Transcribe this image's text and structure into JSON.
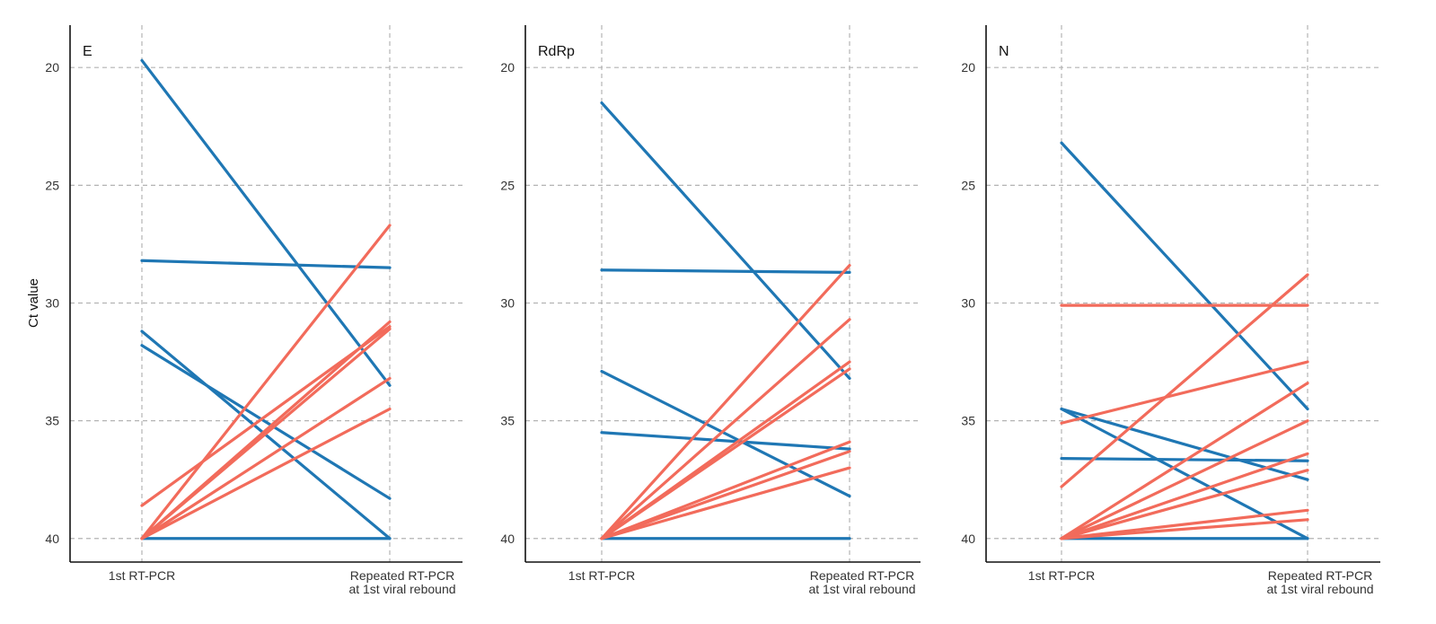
{
  "chart_data": {
    "type": "line",
    "ylabel": "Ct value",
    "y_reversed": true,
    "ylim": [
      41.0,
      18.2
    ],
    "yticks": [
      20,
      25,
      30,
      35,
      40
    ],
    "x_categories": [
      [
        "1st RT-PCR"
      ],
      [
        "Repeated RT-PCR",
        "at 1st viral rebound"
      ]
    ],
    "colors": {
      "decrease": "#1f77b4",
      "increase": "#f26b5b"
    },
    "panels": [
      {
        "title": "E",
        "lines": [
          {
            "start": 19.7,
            "end": 33.5,
            "trend": "decrease"
          },
          {
            "start": 28.2,
            "end": 28.5,
            "trend": "decrease"
          },
          {
            "start": 31.2,
            "end": 40.0,
            "trend": "decrease"
          },
          {
            "start": 31.8,
            "end": 38.3,
            "trend": "decrease"
          },
          {
            "start": 40.0,
            "end": 40.0,
            "trend": "decrease"
          },
          {
            "start": 38.6,
            "end": 31.0,
            "trend": "increase"
          },
          {
            "start": 40.0,
            "end": 26.7,
            "trend": "increase"
          },
          {
            "start": 40.0,
            "end": 30.8,
            "trend": "increase"
          },
          {
            "start": 40.0,
            "end": 31.1,
            "trend": "increase"
          },
          {
            "start": 40.0,
            "end": 33.2,
            "trend": "increase"
          },
          {
            "start": 40.0,
            "end": 34.5,
            "trend": "increase"
          }
        ]
      },
      {
        "title": "RdRp",
        "lines": [
          {
            "start": 21.5,
            "end": 33.2,
            "trend": "decrease"
          },
          {
            "start": 28.6,
            "end": 28.7,
            "trend": "decrease"
          },
          {
            "start": 32.9,
            "end": 38.2,
            "trend": "decrease"
          },
          {
            "start": 35.5,
            "end": 36.2,
            "trend": "decrease"
          },
          {
            "start": 40.0,
            "end": 40.0,
            "trend": "decrease"
          },
          {
            "start": 40.0,
            "end": 28.4,
            "trend": "increase"
          },
          {
            "start": 40.0,
            "end": 30.7,
            "trend": "increase"
          },
          {
            "start": 40.0,
            "end": 32.5,
            "trend": "increase"
          },
          {
            "start": 40.0,
            "end": 32.8,
            "trend": "increase"
          },
          {
            "start": 40.0,
            "end": 35.9,
            "trend": "increase"
          },
          {
            "start": 40.0,
            "end": 36.3,
            "trend": "increase"
          },
          {
            "start": 40.0,
            "end": 37.0,
            "trend": "increase"
          }
        ]
      },
      {
        "title": "N",
        "lines": [
          {
            "start": 23.2,
            "end": 34.5,
            "trend": "decrease"
          },
          {
            "start": 34.5,
            "end": 37.5,
            "trend": "decrease"
          },
          {
            "start": 34.5,
            "end": 40.0,
            "trend": "decrease"
          },
          {
            "start": 36.6,
            "end": 36.7,
            "trend": "decrease"
          },
          {
            "start": 40.0,
            "end": 40.0,
            "trend": "decrease"
          },
          {
            "start": 30.1,
            "end": 30.1,
            "trend": "increase"
          },
          {
            "start": 35.1,
            "end": 32.5,
            "trend": "increase"
          },
          {
            "start": 37.8,
            "end": 28.8,
            "trend": "increase"
          },
          {
            "start": 40.0,
            "end": 33.4,
            "trend": "increase"
          },
          {
            "start": 40.0,
            "end": 35.0,
            "trend": "increase"
          },
          {
            "start": 40.0,
            "end": 36.4,
            "trend": "increase"
          },
          {
            "start": 40.0,
            "end": 37.1,
            "trend": "increase"
          },
          {
            "start": 40.0,
            "end": 38.8,
            "trend": "increase"
          },
          {
            "start": 40.0,
            "end": 39.2,
            "trend": "increase"
          }
        ]
      }
    ]
  }
}
